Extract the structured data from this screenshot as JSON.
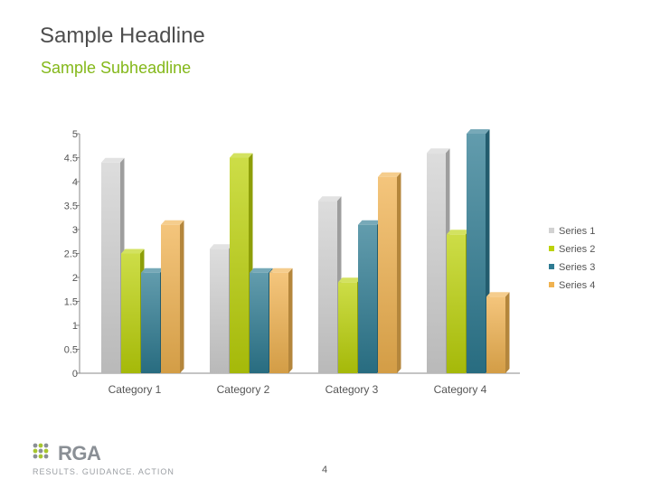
{
  "slide": {
    "headline": "Sample Headline",
    "subheadline": "Sample Subheadline",
    "page_number": "4"
  },
  "brand": {
    "logo_text": "RGA",
    "tagline": "RESULTS. GUIDANCE. ACTION",
    "logo_color": "#8a8f95"
  },
  "chart_data": {
    "type": "bar",
    "categories": [
      "Category 1",
      "Category 2",
      "Category 3",
      "Category 4"
    ],
    "series": [
      {
        "name": "Series 1",
        "values": [
          4.4,
          2.6,
          3.6,
          4.6
        ],
        "color": "#d2d2d2"
      },
      {
        "name": "Series 2",
        "values": [
          2.5,
          4.5,
          1.9,
          2.9
        ],
        "color": "#bcd20a"
      },
      {
        "name": "Series 3",
        "values": [
          2.1,
          2.1,
          3.1,
          5.0
        ],
        "color": "#2e7b92"
      },
      {
        "name": "Series 4",
        "values": [
          3.1,
          2.1,
          4.1,
          1.6
        ],
        "color": "#f0b250"
      }
    ],
    "y_ticks": [
      "0",
      "0.5",
      "1",
      "1.5",
      "2",
      "2.5",
      "3",
      "3.5",
      "4",
      "4.5",
      "5"
    ],
    "ylim": [
      0,
      5
    ],
    "legend_position": "right",
    "grid": false,
    "three_d": true
  }
}
